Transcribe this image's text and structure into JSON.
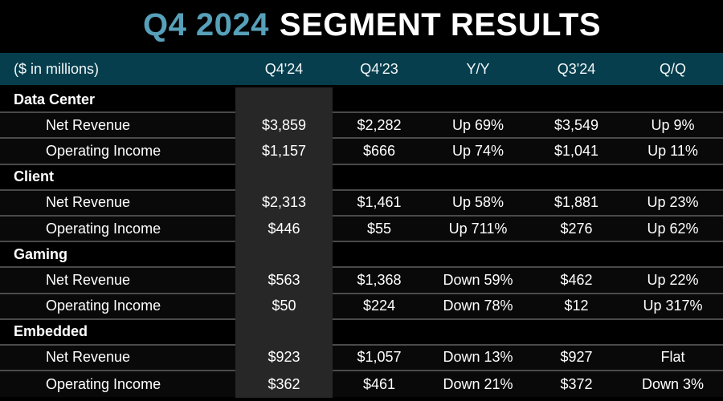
{
  "title": {
    "highlight": "Q4 2024",
    "rest": "SEGMENT RESULTS"
  },
  "colors": {
    "background": "#000000",
    "title_accent": "#57a0ba",
    "header_bg": "#063e4d",
    "highlight_column_bg": "#272727",
    "row_separator": "#4a4a4a",
    "text": "#ffffff"
  },
  "table": {
    "unit_label": "($ in millions)",
    "columns": [
      "Q4'24",
      "Q4'23",
      "Y/Y",
      "Q3'24",
      "Q/Q"
    ],
    "highlighted_column": "Q4'24",
    "sections": [
      {
        "name": "Data Center",
        "rows": [
          {
            "label": "Net Revenue",
            "values": [
              "$3,859",
              "$2,282",
              "Up 69%",
              "$3,549",
              "Up 9%"
            ]
          },
          {
            "label": "Operating Income",
            "values": [
              "$1,157",
              "$666",
              "Up 74%",
              "$1,041",
              "Up 11%"
            ]
          }
        ]
      },
      {
        "name": "Client",
        "rows": [
          {
            "label": "Net Revenue",
            "values": [
              "$2,313",
              "$1,461",
              "Up 58%",
              "$1,881",
              "Up 23%"
            ]
          },
          {
            "label": "Operating Income",
            "values": [
              "$446",
              "$55",
              "Up 711%",
              "$276",
              "Up 62%"
            ]
          }
        ]
      },
      {
        "name": "Gaming",
        "rows": [
          {
            "label": "Net Revenue",
            "values": [
              "$563",
              "$1,368",
              "Down 59%",
              "$462",
              "Up 22%"
            ]
          },
          {
            "label": "Operating Income",
            "values": [
              "$50",
              "$224",
              "Down 78%",
              "$12",
              "Up 317%"
            ]
          }
        ]
      },
      {
        "name": "Embedded",
        "rows": [
          {
            "label": "Net Revenue",
            "values": [
              "$923",
              "$1,057",
              "Down 13%",
              "$927",
              "Flat"
            ]
          },
          {
            "label": "Operating Income",
            "values": [
              "$362",
              "$461",
              "Down 21%",
              "$372",
              "Down 3%"
            ]
          }
        ]
      }
    ]
  },
  "chart_data": {
    "type": "table",
    "title": "Q4 2024 SEGMENT RESULTS",
    "unit": "($ in millions)",
    "columns": [
      "",
      "Q4'24",
      "Q4'23",
      "Y/Y",
      "Q3'24",
      "Q/Q"
    ],
    "rows": [
      [
        "Data Center",
        "",
        "",
        "",
        "",
        ""
      ],
      [
        "Net Revenue",
        "$3,859",
        "$2,282",
        "Up 69%",
        "$3,549",
        "Up 9%"
      ],
      [
        "Operating Income",
        "$1,157",
        "$666",
        "Up 74%",
        "$1,041",
        "Up 11%"
      ],
      [
        "Client",
        "",
        "",
        "",
        "",
        ""
      ],
      [
        "Net Revenue",
        "$2,313",
        "$1,461",
        "Up 58%",
        "$1,881",
        "Up 23%"
      ],
      [
        "Operating Income",
        "$446",
        "$55",
        "Up 711%",
        "$276",
        "Up 62%"
      ],
      [
        "Gaming",
        "",
        "",
        "",
        "",
        ""
      ],
      [
        "Net Revenue",
        "$563",
        "$1,368",
        "Down 59%",
        "$462",
        "Up 22%"
      ],
      [
        "Operating Income",
        "$50",
        "$224",
        "Down 78%",
        "$12",
        "Up 317%"
      ],
      [
        "Embedded",
        "",
        "",
        "",
        "",
        ""
      ],
      [
        "Net Revenue",
        "$923",
        "$1,057",
        "Down 13%",
        "$927",
        "Flat"
      ],
      [
        "Operating Income",
        "$362",
        "$461",
        "Down 21%",
        "$372",
        "Down 3%"
      ]
    ]
  }
}
